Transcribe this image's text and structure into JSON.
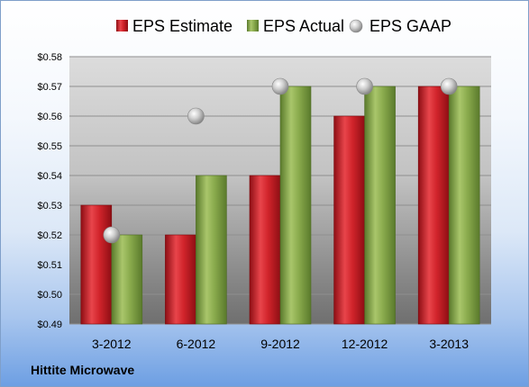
{
  "chart_data": {
    "type": "bar",
    "categories": [
      "3-2012",
      "6-2012",
      "9-2012",
      "12-2012",
      "3-2013"
    ],
    "series": [
      {
        "name": "EPS Estimate",
        "values": [
          0.53,
          0.52,
          0.54,
          0.56,
          0.57
        ],
        "color": "#cc1f27"
      },
      {
        "name": "EPS Actual",
        "values": [
          0.52,
          0.54,
          0.57,
          0.57,
          0.57
        ],
        "color": "#86a84a"
      },
      {
        "name": "EPS GAAP",
        "values": [
          0.52,
          0.56,
          0.57,
          0.57,
          0.57
        ],
        "color": "#c8c8c8",
        "mark": "scatter"
      }
    ],
    "yticks": [
      "$0.49",
      "$0.50",
      "$0.51",
      "$0.52",
      "$0.53",
      "$0.54",
      "$0.55",
      "$0.56",
      "$0.57",
      "$0.58"
    ],
    "ylim": [
      0.49,
      0.58
    ],
    "grid": true,
    "legend_position": "top"
  },
  "footer": {
    "company": "Hittite Microwave"
  }
}
